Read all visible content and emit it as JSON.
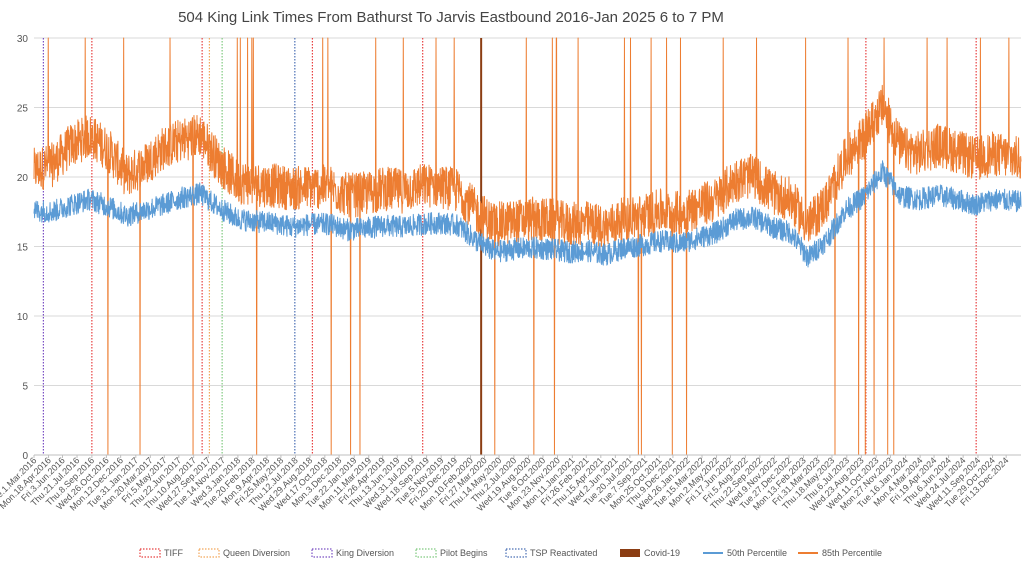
{
  "chart_data": {
    "type": "line",
    "title": "504 King Link Times From Bathurst To Jarvis Eastbound 2016-Jan 2025 6 to 7 PM",
    "xlabel": "",
    "ylabel": "",
    "ylim": [
      0,
      30
    ],
    "yticks": [
      0,
      5,
      10,
      15,
      20,
      25,
      30
    ],
    "grid": true,
    "legend_position": "bottom",
    "x_start": "2016-03-01",
    "x_end": "2025-01-31",
    "xtick_labels": [
      {
        "date": "2016-03-01",
        "label": "Tue.1.Mar.2016"
      },
      {
        "date": "2016-04-18",
        "label": "Mon.18.Apr.2016"
      },
      {
        "date": "2016-06-03",
        "label": "Fri.3.Jun.2016"
      },
      {
        "date": "2016-07-21",
        "label": "Thu.21.Jul.2016"
      },
      {
        "date": "2016-09-08",
        "label": "Thu.8.Sep.2016"
      },
      {
        "date": "2016-10-26",
        "label": "Wed.26.Oct.2016"
      },
      {
        "date": "2016-12-12",
        "label": "Mon.12.Dec.2016"
      },
      {
        "date": "2017-01-31",
        "label": "Tue.31.Jan.2017"
      },
      {
        "date": "2017-03-20",
        "label": "Mon.20.Mar.2017"
      },
      {
        "date": "2017-05-05",
        "label": "Fri.5.May.2017"
      },
      {
        "date": "2017-06-22",
        "label": "Thu.22.Jun.2017"
      },
      {
        "date": "2017-08-10",
        "label": "Thu.10.Aug.2017"
      },
      {
        "date": "2017-09-27",
        "label": "Wed.27.Sep.2017"
      },
      {
        "date": "2017-11-14",
        "label": "Tue.14.Nov.2017"
      },
      {
        "date": "2018-01-03",
        "label": "Wed.3.Jan.2018"
      },
      {
        "date": "2018-02-20",
        "label": "Tue.20.Feb.2018"
      },
      {
        "date": "2018-04-09",
        "label": "Mon.9.Apr.2018"
      },
      {
        "date": "2018-05-25",
        "label": "Fri.25.May.2018"
      },
      {
        "date": "2018-07-12",
        "label": "Thu.12.Jul.2018"
      },
      {
        "date": "2018-08-29",
        "label": "Wed.29.Aug.2018"
      },
      {
        "date": "2018-10-17",
        "label": "Wed.17.Oct.2018"
      },
      {
        "date": "2018-12-03",
        "label": "Mon.3.Dec.2018"
      },
      {
        "date": "2019-01-22",
        "label": "Tue.22.Jan.2019"
      },
      {
        "date": "2019-03-11",
        "label": "Mon.11.Mar.2019"
      },
      {
        "date": "2019-04-26",
        "label": "Fri.26.Apr.2019"
      },
      {
        "date": "2019-06-13",
        "label": "Thu.13.Jun.2019"
      },
      {
        "date": "2019-07-31",
        "label": "Wed.31.Jul.2019"
      },
      {
        "date": "2019-09-18",
        "label": "Wed.18.Sep.2019"
      },
      {
        "date": "2019-11-05",
        "label": "Tue.5.Nov.2019"
      },
      {
        "date": "2019-12-20",
        "label": "Fri.20.Dec.2019"
      },
      {
        "date": "2020-02-10",
        "label": "Mon.10.Feb.2020"
      },
      {
        "date": "2020-03-27",
        "label": "Fri.27.Mar.2020"
      },
      {
        "date": "2020-05-14",
        "label": "Thu.14.May.2020"
      },
      {
        "date": "2020-07-02",
        "label": "Thu.2.Jul.2020"
      },
      {
        "date": "2020-08-19",
        "label": "Wed.19.Aug.2020"
      },
      {
        "date": "2020-10-06",
        "label": "Tue.6.Oct.2020"
      },
      {
        "date": "2020-11-23",
        "label": "Mon.23.Nov.2020"
      },
      {
        "date": "2021-01-11",
        "label": "Mon.11.Jan.2021"
      },
      {
        "date": "2021-02-26",
        "label": "Fri.26.Feb.2021"
      },
      {
        "date": "2021-04-15",
        "label": "Thu.15.Apr.2021"
      },
      {
        "date": "2021-06-02",
        "label": "Wed.2.Jun.2021"
      },
      {
        "date": "2021-07-20",
        "label": "Tue.20.Jul.2021"
      },
      {
        "date": "2021-09-07",
        "label": "Tue.7.Sep.2021"
      },
      {
        "date": "2021-10-25",
        "label": "Mon.25.Oct.2021"
      },
      {
        "date": "2021-12-09",
        "label": "Thu.9.Dec.2021"
      },
      {
        "date": "2022-01-26",
        "label": "Wed.26.Jan.2022"
      },
      {
        "date": "2022-03-15",
        "label": "Tue.15.Mar.2022"
      },
      {
        "date": "2022-05-02",
        "label": "Mon.2.May.2022"
      },
      {
        "date": "2022-06-17",
        "label": "Fri.17.Jun.2022"
      },
      {
        "date": "2022-08-05",
        "label": "Fri.5.Aug.2022"
      },
      {
        "date": "2022-09-22",
        "label": "Thu.22.Sep.2022"
      },
      {
        "date": "2022-11-09",
        "label": "Wed.9.Nov.2022"
      },
      {
        "date": "2022-12-27",
        "label": "Tue.27.Dec.2022"
      },
      {
        "date": "2023-02-13",
        "label": "Mon.13.Feb.2023"
      },
      {
        "date": "2023-03-31",
        "label": "Fri.31.Mar.2023"
      },
      {
        "date": "2023-05-18",
        "label": "Thu.18.May.2023"
      },
      {
        "date": "2023-07-06",
        "label": "Thu.6.Jul.2023"
      },
      {
        "date": "2023-08-23",
        "label": "Wed.23.Aug.2023"
      },
      {
        "date": "2023-10-11",
        "label": "Wed.11.Oct.2023"
      },
      {
        "date": "2023-11-27",
        "label": "Mon.27.Nov.2023"
      },
      {
        "date": "2024-01-16",
        "label": "Tue.16.Jan.2024"
      },
      {
        "date": "2024-03-04",
        "label": "Mon.4.Mar.2024"
      },
      {
        "date": "2024-04-19",
        "label": "Fri.19.Apr.2024"
      },
      {
        "date": "2024-06-06",
        "label": "Thu.6.Jun.2024"
      },
      {
        "date": "2024-07-24",
        "label": "Wed.24.Jul.2024"
      },
      {
        "date": "2024-09-11",
        "label": "Wed.11.Sep.2024"
      },
      {
        "date": "2024-10-29",
        "label": "Tue.29.Oct.2024"
      },
      {
        "date": "2024-12-13",
        "label": "Fri.13.Dec.2024"
      }
    ],
    "markers": [
      {
        "name": "TIFF",
        "color": "#e84040",
        "style": "dotted",
        "dates": [
          "2016-09-08",
          "2017-09-07",
          "2018-09-06",
          "2019-09-05",
          "2023-09-07",
          "2024-09-05"
        ]
      },
      {
        "name": "Queen Diversion",
        "color": "#f2a65a",
        "style": "dotted",
        "dates": [
          "2017-10-01"
        ]
      },
      {
        "name": "King Diversion",
        "color": "#7a4fc4",
        "style": "dotted",
        "dates": [
          "2016-04-01"
        ]
      },
      {
        "name": "Pilot Begins",
        "color": "#7fc97f",
        "style": "dotted",
        "dates": [
          "2017-11-12"
        ]
      },
      {
        "name": "TSP Reactivated",
        "color": "#4a6fb5",
        "style": "dotted",
        "dates": [
          "2018-07-10"
        ]
      },
      {
        "name": "Covid-19",
        "color": "#8b3d13",
        "style": "solid",
        "dates": [
          "2020-03-16"
        ]
      }
    ],
    "series": [
      {
        "name": "50th Percentile",
        "color": "#5b9bd5",
        "points": [
          [
            "2016-03-01",
            17.6
          ],
          [
            "2016-05-01",
            17.5
          ],
          [
            "2016-07-01",
            18.0
          ],
          [
            "2016-09-01",
            18.4
          ],
          [
            "2016-11-01",
            17.9
          ],
          [
            "2017-01-01",
            17.2
          ],
          [
            "2017-03-01",
            17.6
          ],
          [
            "2017-05-01",
            18.0
          ],
          [
            "2017-07-01",
            18.5
          ],
          [
            "2017-09-01",
            18.8
          ],
          [
            "2017-11-01",
            17.8
          ],
          [
            "2018-01-01",
            17.0
          ],
          [
            "2018-03-01",
            16.8
          ],
          [
            "2018-05-01",
            16.7
          ],
          [
            "2018-07-01",
            16.4
          ],
          [
            "2018-09-01",
            16.6
          ],
          [
            "2018-11-01",
            16.6
          ],
          [
            "2019-01-01",
            16.2
          ],
          [
            "2019-03-01",
            16.3
          ],
          [
            "2019-05-01",
            16.5
          ],
          [
            "2019-07-01",
            16.4
          ],
          [
            "2019-09-01",
            16.6
          ],
          [
            "2019-11-01",
            16.7
          ],
          [
            "2020-01-01",
            16.5
          ],
          [
            "2020-03-01",
            15.4
          ],
          [
            "2020-05-01",
            14.6
          ],
          [
            "2020-07-01",
            14.8
          ],
          [
            "2020-09-01",
            14.9
          ],
          [
            "2020-11-01",
            14.8
          ],
          [
            "2021-01-01",
            14.6
          ],
          [
            "2021-03-01",
            14.7
          ],
          [
            "2021-05-01",
            14.4
          ],
          [
            "2021-07-01",
            14.9
          ],
          [
            "2021-09-01",
            15.1
          ],
          [
            "2021-11-01",
            15.4
          ],
          [
            "2022-01-01",
            15.2
          ],
          [
            "2022-03-01",
            15.6
          ],
          [
            "2022-05-01",
            16.0
          ],
          [
            "2022-07-01",
            16.9
          ],
          [
            "2022-09-01",
            17.1
          ],
          [
            "2022-11-01",
            16.4
          ],
          [
            "2023-01-01",
            16.0
          ],
          [
            "2023-03-01",
            14.2
          ],
          [
            "2023-05-01",
            15.5
          ],
          [
            "2023-07-01",
            17.6
          ],
          [
            "2023-09-01",
            18.6
          ],
          [
            "2023-11-01",
            20.4
          ],
          [
            "2024-01-01",
            18.6
          ],
          [
            "2024-03-01",
            18.4
          ],
          [
            "2024-05-01",
            18.7
          ],
          [
            "2024-07-01",
            18.4
          ],
          [
            "2024-09-01",
            18.0
          ],
          [
            "2024-11-01",
            18.4
          ],
          [
            "2025-01-31",
            18.2
          ]
        ]
      },
      {
        "name": "85th Percentile",
        "color": "#ed7d31",
        "points": [
          [
            "2016-03-01",
            20.0
          ],
          [
            "2016-05-01",
            20.4
          ],
          [
            "2016-07-01",
            21.8
          ],
          [
            "2016-09-01",
            22.5
          ],
          [
            "2016-11-01",
            21.5
          ],
          [
            "2017-01-01",
            19.6
          ],
          [
            "2017-03-01",
            20.4
          ],
          [
            "2017-05-01",
            21.6
          ],
          [
            "2017-07-01",
            22.2
          ],
          [
            "2017-09-01",
            22.6
          ],
          [
            "2017-11-01",
            20.6
          ],
          [
            "2018-01-01",
            19.2
          ],
          [
            "2018-03-01",
            19.0
          ],
          [
            "2018-05-01",
            18.9
          ],
          [
            "2018-07-01",
            18.7
          ],
          [
            "2018-09-01",
            18.8
          ],
          [
            "2018-11-01",
            18.8
          ],
          [
            "2019-01-01",
            18.2
          ],
          [
            "2019-03-01",
            18.3
          ],
          [
            "2019-05-01",
            18.7
          ],
          [
            "2019-07-01",
            18.5
          ],
          [
            "2019-09-01",
            18.9
          ],
          [
            "2019-11-01",
            18.9
          ],
          [
            "2020-01-01",
            18.5
          ],
          [
            "2020-03-01",
            17.0
          ],
          [
            "2020-05-01",
            16.1
          ],
          [
            "2020-07-01",
            16.3
          ],
          [
            "2020-09-01",
            16.5
          ],
          [
            "2020-11-01",
            16.4
          ],
          [
            "2021-01-01",
            16.1
          ],
          [
            "2021-03-01",
            16.2
          ],
          [
            "2021-05-01",
            15.9
          ],
          [
            "2021-07-01",
            16.5
          ],
          [
            "2021-09-01",
            16.7
          ],
          [
            "2021-11-01",
            17.1
          ],
          [
            "2022-01-01",
            16.9
          ],
          [
            "2022-03-01",
            17.4
          ],
          [
            "2022-05-01",
            17.9
          ],
          [
            "2022-07-01",
            19.3
          ],
          [
            "2022-09-01",
            19.6
          ],
          [
            "2022-11-01",
            18.4
          ],
          [
            "2023-01-01",
            17.9
          ],
          [
            "2023-03-01",
            16.0
          ],
          [
            "2023-05-01",
            17.8
          ],
          [
            "2023-07-01",
            20.8
          ],
          [
            "2023-09-01",
            22.4
          ],
          [
            "2023-11-01",
            24.6
          ],
          [
            "2024-01-01",
            21.6
          ],
          [
            "2024-03-01",
            21.2
          ],
          [
            "2024-05-01",
            21.8
          ],
          [
            "2024-07-01",
            21.4
          ],
          [
            "2024-09-01",
            20.8
          ],
          [
            "2024-11-01",
            21.2
          ],
          [
            "2025-01-31",
            20.8
          ]
        ]
      }
    ]
  }
}
